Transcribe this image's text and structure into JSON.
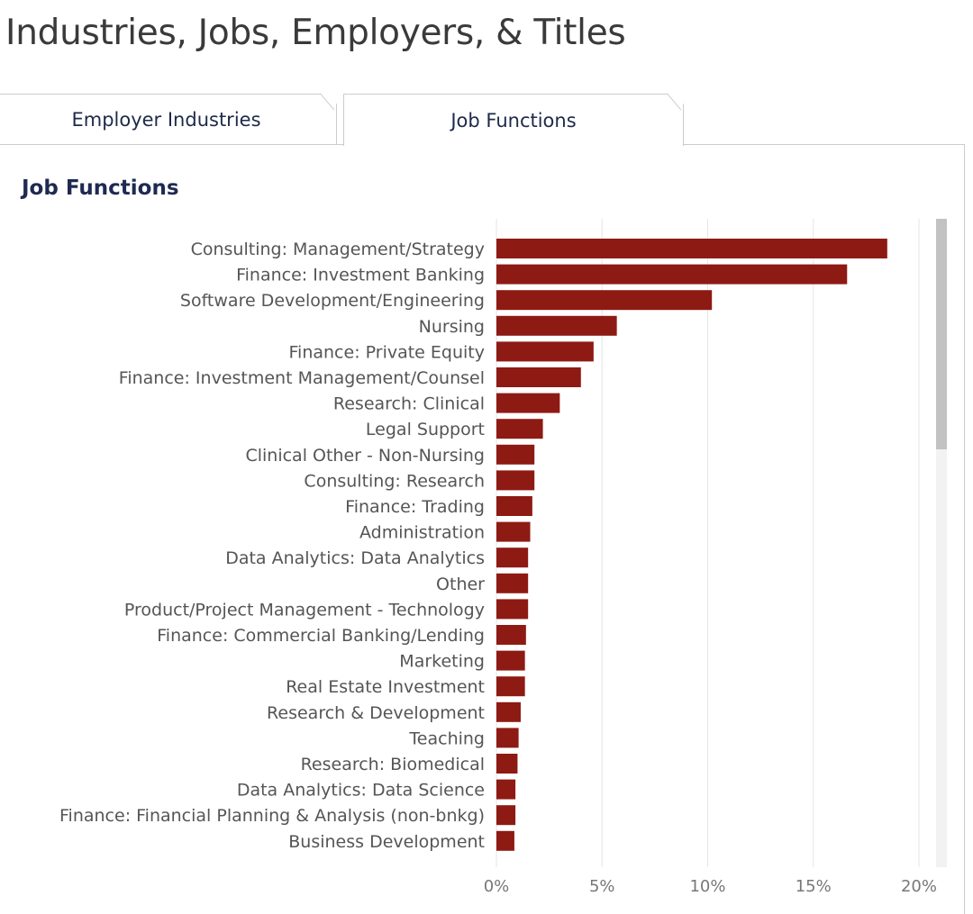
{
  "page": {
    "heading": "Industries, Jobs, Employers, & Titles"
  },
  "tabs": [
    {
      "label": "Employer Industries",
      "active": false
    },
    {
      "label": "Job Functions",
      "active": true
    }
  ],
  "colors": {
    "bar": "#8e1a14",
    "grid": "#e6e6e6",
    "label": "#555555",
    "tick": "#777777",
    "title": "#1f2a52"
  },
  "chart_data": {
    "type": "bar",
    "orientation": "horizontal",
    "title": "Job Functions",
    "categories": [
      "Consulting: Management/Strategy",
      "Finance: Investment Banking",
      "Software Development/Engineering",
      "Nursing",
      "Finance: Private Equity",
      "Finance: Investment Management/Counsel",
      "Research: Clinical",
      "Legal Support",
      "Clinical Other - Non-Nursing",
      "Consulting: Research",
      "Finance: Trading",
      "Administration",
      "Data Analytics: Data Analytics",
      "Other",
      "Product/Project Management - Technology",
      "Finance: Commercial Banking/Lending",
      "Marketing",
      "Real Estate Investment",
      "Research & Development",
      "Teaching",
      "Research: Biomedical",
      "Data Analytics: Data Science",
      "Finance: Financial Planning & Analysis (non-bnkg)",
      "Business Development"
    ],
    "values": [
      18.5,
      16.6,
      10.2,
      5.7,
      4.6,
      4.0,
      3.0,
      2.2,
      1.8,
      1.8,
      1.7,
      1.6,
      1.5,
      1.5,
      1.5,
      1.4,
      1.35,
      1.35,
      1.15,
      1.05,
      1.0,
      0.9,
      0.9,
      0.85
    ],
    "xlim": [
      0,
      20
    ],
    "xticks": [
      {
        "value": 0,
        "label": "0%"
      },
      {
        "value": 5,
        "label": "5%"
      },
      {
        "value": 10,
        "label": "10%"
      },
      {
        "value": 15,
        "label": "15%"
      },
      {
        "value": 20,
        "label": "20%"
      }
    ],
    "grid": true,
    "legend": false
  }
}
